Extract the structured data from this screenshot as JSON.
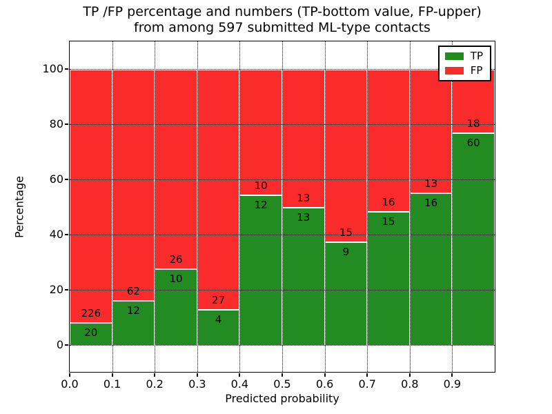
{
  "title": {
    "line1": "TP /FP percentage and numbers (TP-bottom value, FP-upper)",
    "line2": "from among 597 submitted ML-type contacts"
  },
  "chart_data": {
    "type": "bar",
    "subtype": "stacked-percentage",
    "title": "TP /FP percentage and numbers (TP-bottom value, FP-upper) from among 597 submitted ML-type contacts",
    "xlabel": "Predicted probability",
    "ylabel": "Percentage",
    "total_contacts": 597,
    "bins": [
      "0.0-0.1",
      "0.1-0.2",
      "0.2-0.3",
      "0.3-0.4",
      "0.4-0.5",
      "0.5-0.6",
      "0.6-0.7",
      "0.7-0.8",
      "0.8-0.9",
      "0.9-1.0"
    ],
    "series": [
      {
        "name": "TP",
        "color": "#228b22",
        "counts": [
          20,
          12,
          10,
          4,
          12,
          13,
          9,
          15,
          16,
          60
        ],
        "percent": [
          8.13,
          16.22,
          27.78,
          12.9,
          54.55,
          50.0,
          37.5,
          48.39,
          55.17,
          76.92
        ]
      },
      {
        "name": "FP",
        "color": "#f92b2b",
        "counts": [
          226,
          62,
          26,
          27,
          10,
          13,
          15,
          16,
          13,
          18
        ],
        "percent": [
          91.87,
          83.78,
          72.22,
          87.1,
          45.45,
          50.0,
          62.5,
          51.61,
          44.83,
          23.08
        ]
      }
    ],
    "xticklabels": [
      "0.0",
      "0.1",
      "0.2",
      "0.3",
      "0.4",
      "0.5",
      "0.6",
      "0.7",
      "0.8",
      "0.9"
    ],
    "yticks": [
      0,
      20,
      40,
      60,
      80,
      100
    ],
    "xlim": [
      0,
      1
    ],
    "ylim": [
      -10,
      110
    ],
    "grid": "dotted",
    "bar_edge_color": "#ffffff",
    "legend": {
      "position": "upper right",
      "entries": [
        {
          "label": "TP",
          "color": "#228b22"
        },
        {
          "label": "FP",
          "color": "#f92b2b"
        }
      ]
    }
  }
}
